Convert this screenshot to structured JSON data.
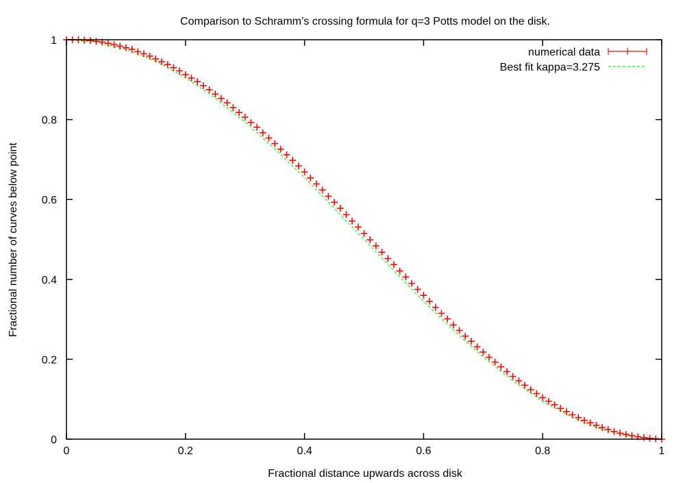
{
  "chart_data": {
    "type": "scatter",
    "title": "Comparison to Schramm’s crossing formula for q=3 Potts model on the disk.",
    "xlabel": "Fractional distance upwards across disk",
    "ylabel": "Fractional number of curves below point",
    "xlim": [
      0,
      1
    ],
    "ylim": [
      0,
      1
    ],
    "xticks": [
      "0",
      "0.2",
      "0.4",
      "0.6",
      "0.8",
      "1"
    ],
    "yticks": [
      "0",
      "0.2",
      "0.4",
      "0.6",
      "0.8",
      "1"
    ],
    "grid": false,
    "legend_placement": "top-right",
    "series": [
      {
        "name": "numerical data",
        "style": "points-with-errorbars",
        "color": "#ff0000",
        "x_start": 0,
        "x_step": 0.01,
        "values": [
          1.0,
          1.0,
          1.0,
          0.999,
          0.998,
          0.996,
          0.994,
          0.991,
          0.988,
          0.984,
          0.98,
          0.976,
          0.97,
          0.965,
          0.959,
          0.952,
          0.945,
          0.938,
          0.93,
          0.922,
          0.913,
          0.904,
          0.895,
          0.885,
          0.875,
          0.864,
          0.853,
          0.842,
          0.83,
          0.818,
          0.806,
          0.793,
          0.781,
          0.767,
          0.754,
          0.74,
          0.726,
          0.712,
          0.698,
          0.684,
          0.669,
          0.654,
          0.639,
          0.624,
          0.608,
          0.593,
          0.578,
          0.562,
          0.546,
          0.531,
          0.515,
          0.499,
          0.484,
          0.468,
          0.452,
          0.437,
          0.421,
          0.406,
          0.39,
          0.375,
          0.36,
          0.345,
          0.33,
          0.315,
          0.301,
          0.286,
          0.272,
          0.258,
          0.245,
          0.231,
          0.218,
          0.205,
          0.193,
          0.181,
          0.169,
          0.157,
          0.146,
          0.135,
          0.124,
          0.114,
          0.104,
          0.095,
          0.086,
          0.077,
          0.069,
          0.061,
          0.054,
          0.047,
          0.041,
          0.035,
          0.029,
          0.024,
          0.019,
          0.015,
          0.012,
          0.009,
          0.006,
          0.004,
          0.002,
          0.001,
          0.0
        ]
      },
      {
        "name": "Best fit kappa=3.275",
        "style": "dashed-line",
        "color": "#00ff00",
        "x_start": 0,
        "x_step": 0.05,
        "values": [
          1,
          0.994,
          0.976,
          0.946,
          0.905,
          0.854,
          0.794,
          0.727,
          0.655,
          0.578,
          0.5,
          0.422,
          0.345,
          0.273,
          0.206,
          0.146,
          0.095,
          0.054,
          0.024,
          0.006,
          0
        ]
      }
    ]
  }
}
